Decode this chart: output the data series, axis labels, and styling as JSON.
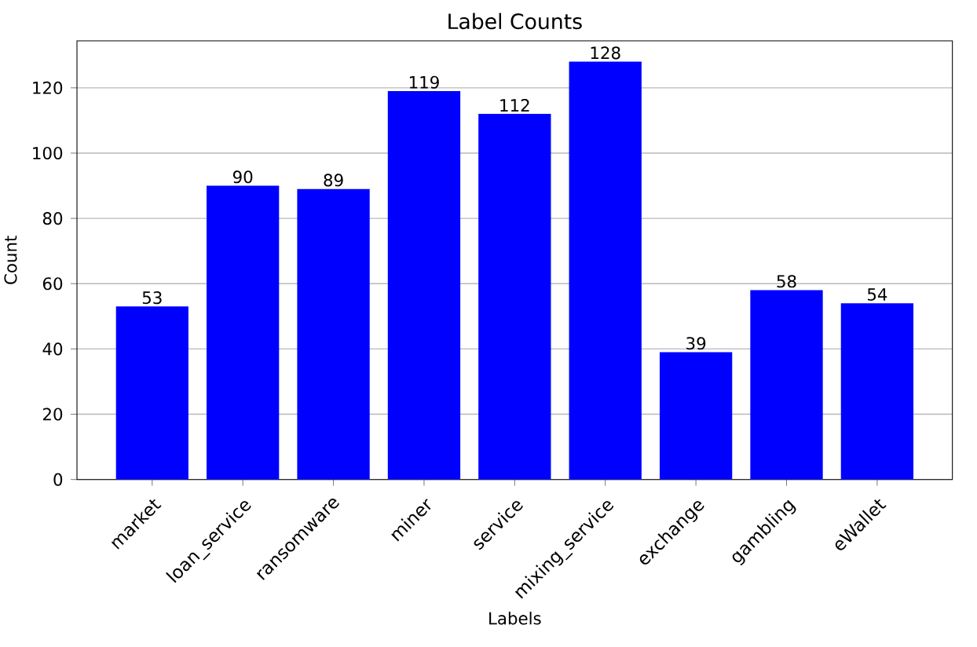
{
  "chart_data": {
    "type": "bar",
    "title": "Label Counts",
    "xlabel": "Labels",
    "ylabel": "Count",
    "categories": [
      "market",
      "loan_service",
      "ransomware",
      "miner",
      "service",
      "mixing_service",
      "exchange",
      "gambling",
      "eWallet"
    ],
    "values": [
      53,
      90,
      89,
      119,
      112,
      128,
      39,
      58,
      54
    ],
    "color": "#0000ff",
    "ylim": [
      0,
      134.4
    ],
    "yticks": [
      0,
      20,
      40,
      60,
      80,
      100,
      120
    ],
    "grid": "y",
    "data_labels": true
  }
}
